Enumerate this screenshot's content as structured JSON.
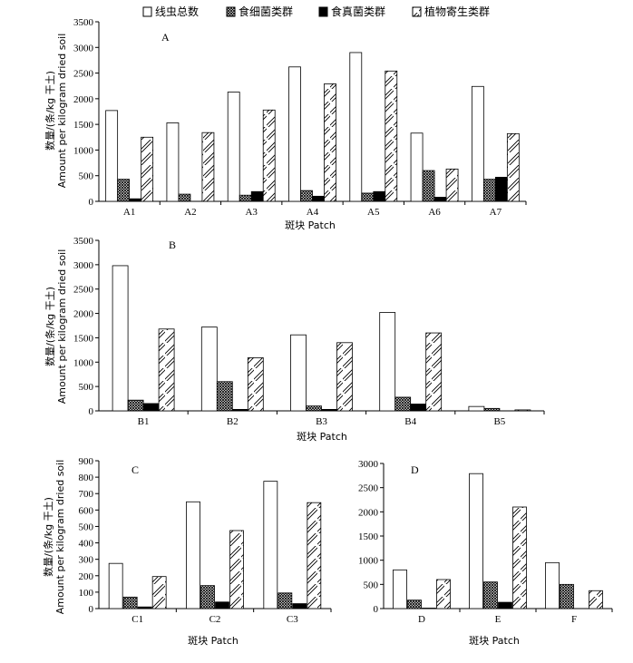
{
  "legend": {
    "series": [
      {
        "name": "线虫总数",
        "pattern": "white"
      },
      {
        "name": "食细菌类群",
        "pattern": "crosshatch"
      },
      {
        "name": "食真菌类群",
        "pattern": "black"
      },
      {
        "name": "植物寄生类群",
        "pattern": "diag"
      }
    ]
  },
  "ylabel_cn": "数量/(条/kg 干土)",
  "ylabel_en": "Amount per kilogram dried soil",
  "xlabel": "斑块 Patch",
  "chart_data": [
    {
      "panel": "A",
      "type": "bar",
      "ylim": [
        0,
        3500
      ],
      "yticks": [
        0,
        500,
        1000,
        1500,
        2000,
        2500,
        3000,
        3500
      ],
      "categories": [
        "A1",
        "A2",
        "A3",
        "A4",
        "A5",
        "A6",
        "A7"
      ],
      "series": [
        {
          "name": "线虫总数",
          "values": [
            1770,
            1530,
            2130,
            2620,
            2900,
            1330,
            2240
          ]
        },
        {
          "name": "食细菌类群",
          "values": [
            430,
            140,
            120,
            210,
            160,
            600,
            430
          ]
        },
        {
          "name": "食真菌类群",
          "values": [
            50,
            0,
            190,
            100,
            190,
            80,
            470
          ]
        },
        {
          "name": "植物寄生类群",
          "values": [
            1250,
            1340,
            1780,
            2290,
            2540,
            630,
            1320
          ]
        }
      ]
    },
    {
      "panel": "B",
      "type": "bar",
      "ylim": [
        0,
        3500
      ],
      "yticks": [
        0,
        500,
        1000,
        1500,
        2000,
        2500,
        3000,
        3500
      ],
      "categories": [
        "B1",
        "B2",
        "B3",
        "B4",
        "B5"
      ],
      "series": [
        {
          "name": "线虫总数",
          "values": [
            2980,
            1720,
            1560,
            2020,
            90
          ]
        },
        {
          "name": "食细菌类群",
          "values": [
            220,
            600,
            100,
            280,
            50
          ]
        },
        {
          "name": "食真菌类群",
          "values": [
            150,
            30,
            30,
            140,
            0
          ]
        },
        {
          "name": "植物寄生类群",
          "values": [
            1680,
            1090,
            1400,
            1600,
            20
          ]
        }
      ]
    },
    {
      "panel": "C",
      "type": "bar",
      "ylim": [
        0,
        900
      ],
      "yticks": [
        0,
        100,
        200,
        300,
        400,
        500,
        600,
        700,
        800,
        900
      ],
      "categories": [
        "C1",
        "C2",
        "C3"
      ],
      "series": [
        {
          "name": "线虫总数",
          "values": [
            275,
            650,
            775
          ]
        },
        {
          "name": "食细菌类群",
          "values": [
            70,
            140,
            95
          ]
        },
        {
          "name": "食真菌类群",
          "values": [
            10,
            40,
            30
          ]
        },
        {
          "name": "植物寄生类群",
          "values": [
            195,
            475,
            645
          ]
        }
      ]
    },
    {
      "panel": "D",
      "type": "bar",
      "ylim": [
        0,
        3000
      ],
      "yticks": [
        0,
        500,
        1000,
        1500,
        2000,
        2500,
        3000
      ],
      "categories": [
        "D",
        "E",
        "F"
      ],
      "series": [
        {
          "name": "线虫总数",
          "values": [
            800,
            2790,
            950
          ]
        },
        {
          "name": "食细菌类群",
          "values": [
            175,
            550,
            500
          ]
        },
        {
          "name": "食真菌类群",
          "values": [
            10,
            130,
            0
          ]
        },
        {
          "name": "植物寄生类群",
          "values": [
            600,
            2100,
            370
          ]
        }
      ]
    }
  ]
}
